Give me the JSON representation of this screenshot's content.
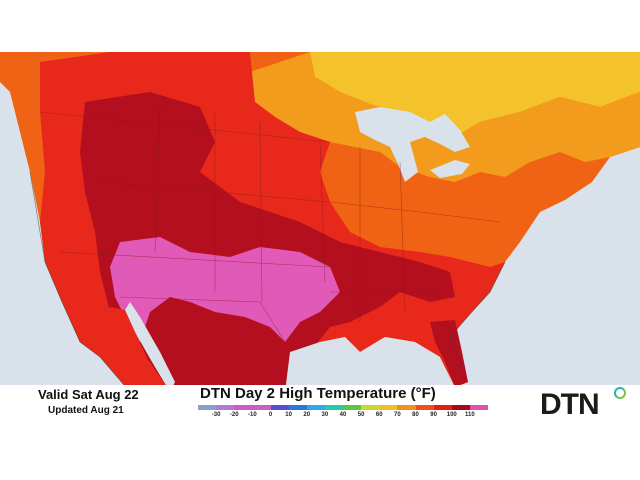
{
  "map": {
    "title": "DTN Day 2 High Temperature (°F)",
    "valid": "Valid Sat Aug 22",
    "updated": "Updated Aug 21",
    "brand": "DTN",
    "region": "North America",
    "legend": {
      "ticks": [
        "-30",
        "-20",
        "-10",
        "0",
        "10",
        "20",
        "30",
        "40",
        "50",
        "60",
        "70",
        "80",
        "90",
        "100",
        "110"
      ],
      "colors": [
        "#8aa0c8",
        "#b07cd0",
        "#d05ac8",
        "#c860c0",
        "#5050d0",
        "#2878d8",
        "#30a8e8",
        "#28c8a8",
        "#58c840",
        "#c8d830",
        "#f0c020",
        "#f09020",
        "#f05018",
        "#e02010",
        "#a80818",
        "#e050b0"
      ]
    },
    "colors": {
      "water": "#d9e2ea",
      "temp_60s": "#f4c22b",
      "temp_70s": "#f29b1c",
      "temp_80s": "#f16314",
      "temp_90s": "#e8281a",
      "temp_100s": "#b40f1e",
      "temp_110s": "#e15ab8"
    }
  }
}
